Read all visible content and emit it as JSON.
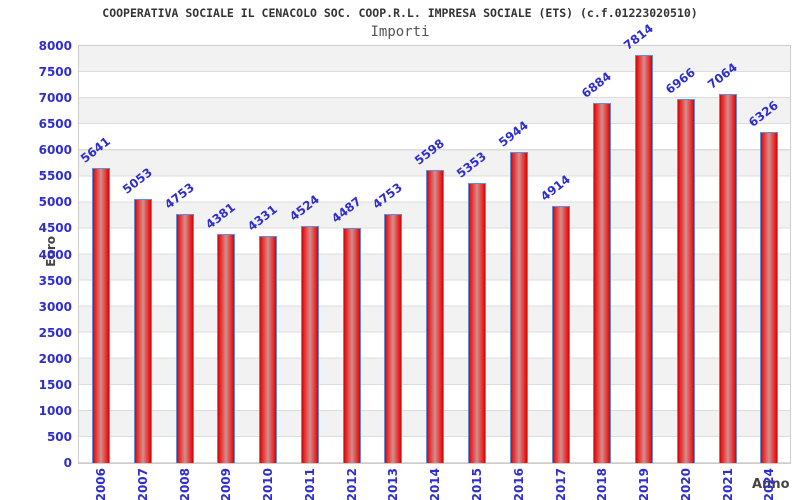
{
  "header": {
    "title": "COOPERATIVA SOCIALE IL CENACOLO SOC. COOP.R.L. IMPRESA SOCIALE (ETS) (c.f.01223020510)",
    "subtitle": "Importi"
  },
  "chart_data": {
    "type": "bar",
    "title": "Importi",
    "categories": [
      "2006",
      "2007",
      "2008",
      "2009",
      "2010",
      "2011",
      "2012",
      "2013",
      "2014",
      "2015",
      "2016",
      "2017",
      "2018",
      "2019",
      "2020",
      "2021",
      "2024"
    ],
    "values": [
      5641,
      5053,
      4753,
      4381,
      4331,
      4524,
      4487,
      4753,
      5598,
      5353,
      5944,
      4914,
      6884,
      7814,
      6966,
      7064,
      6326
    ],
    "xlabel": "Anno",
    "ylabel": "Euro",
    "ylim": [
      0,
      8000
    ],
    "ytick_step": 500,
    "y_ticks": [
      0,
      500,
      1000,
      1500,
      2000,
      2500,
      3000,
      3500,
      4000,
      4500,
      5000,
      5500,
      6000,
      6500,
      7000,
      7500,
      8000
    ],
    "grid": "horizontal-bands-every-500",
    "legend_position": "none",
    "value_label_rotation_deg": -38,
    "x_label_rotation_deg": -90,
    "colors": {
      "axis_text": "#2d2dd0",
      "value_label_text": "#2d2dd0",
      "bar_border": "#5c8fdc",
      "bar_fill_edge": "#c40a0a",
      "bar_fill_bright": "#ee2424",
      "bar_fill_center": "#cf8f8f",
      "band_white": "#ffffff",
      "band_gray": "#f2f2f2",
      "gridline": "#dcdcdc",
      "frame": "#cccccc",
      "title_text": "#333333",
      "subtitle_text": "#555555",
      "axis_label_text": "#444444"
    }
  }
}
